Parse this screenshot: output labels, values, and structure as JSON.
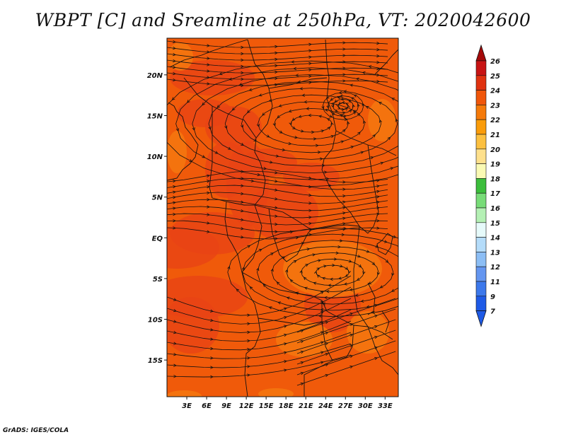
{
  "title": "WBPT [C] and Sreamline at 250hPa, VT: 2020042600",
  "credit": "GrADS: IGES/COLA",
  "map": {
    "lon_range": [
      0,
      35
    ],
    "lat_range": [
      -19.5,
      24.5
    ],
    "lon_ticks": [
      {
        "value": 3,
        "label": "3E"
      },
      {
        "value": 6,
        "label": "6E"
      },
      {
        "value": 9,
        "label": "9E"
      },
      {
        "value": 12,
        "label": "12E"
      },
      {
        "value": 15,
        "label": "15E"
      },
      {
        "value": 18,
        "label": "18E"
      },
      {
        "value": 21,
        "label": "21E"
      },
      {
        "value": 24,
        "label": "24E"
      },
      {
        "value": 27,
        "label": "27E"
      },
      {
        "value": 30,
        "label": "30E"
      },
      {
        "value": 33,
        "label": "33E"
      }
    ],
    "lat_ticks": [
      {
        "value": 20,
        "label": "20N"
      },
      {
        "value": 15,
        "label": "15N"
      },
      {
        "value": 10,
        "label": "10N"
      },
      {
        "value": 5,
        "label": "5N"
      },
      {
        "value": 0,
        "label": "EQ"
      },
      {
        "value": -5,
        "label": "5S"
      },
      {
        "value": -10,
        "label": "10S"
      },
      {
        "value": -15,
        "label": "15S"
      }
    ],
    "background_color": "#f05a0a",
    "warm_patch_color": "#e84316",
    "cool_patch_color": "#f5780f"
  },
  "colorbar": {
    "levels": [
      {
        "label": "26",
        "color": "#a50a0a"
      },
      {
        "label": "25",
        "color": "#c81414"
      },
      {
        "label": "24",
        "color": "#e03210"
      },
      {
        "label": "23",
        "color": "#f0560a"
      },
      {
        "label": "22",
        "color": "#f57a0a"
      },
      {
        "label": "21",
        "color": "#fa9c0a"
      },
      {
        "label": "20",
        "color": "#fcc040"
      },
      {
        "label": "19",
        "color": "#fee08c"
      },
      {
        "label": "18",
        "color": "#fafab4"
      },
      {
        "label": "17",
        "color": "#3cbe3c"
      },
      {
        "label": "16",
        "color": "#78dc78"
      },
      {
        "label": "15",
        "color": "#b4f0b4"
      },
      {
        "label": "14",
        "color": "#e6fafa"
      },
      {
        "label": "13",
        "color": "#b4dcfa"
      },
      {
        "label": "12",
        "color": "#8cbef5"
      },
      {
        "label": "11",
        "color": "#6496f0"
      },
      {
        "label": "9",
        "color": "#3c78eb"
      },
      {
        "label": "7",
        "color": "#1e5ae6"
      }
    ],
    "bottom_color": "#1e5ae6"
  }
}
